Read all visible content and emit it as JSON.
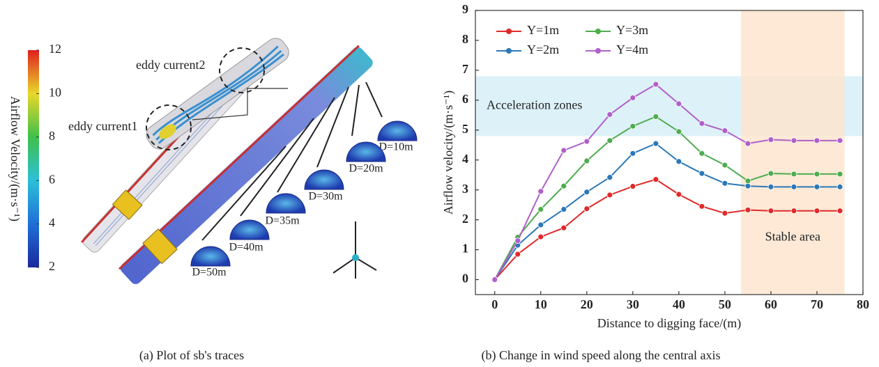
{
  "chart_data": {
    "type": "line",
    "caption": "(b) Change in wind speed along the central axis",
    "xlabel": "Distance to digging face/(m)",
    "ylabel": "Airflow velocity/(m·s⁻¹)",
    "x": [
      0,
      5,
      10,
      15,
      20,
      25,
      30,
      35,
      40,
      45,
      50,
      55,
      60,
      65,
      70,
      75
    ],
    "series": [
      {
        "name": "Y=1m",
        "color": "#e02a2a",
        "values": [
          0,
          0.85,
          1.43,
          1.73,
          2.37,
          2.83,
          3.12,
          3.35,
          2.85,
          2.45,
          2.22,
          2.33,
          2.3,
          2.3,
          2.3,
          2.3
        ]
      },
      {
        "name": "Y=2m",
        "color": "#2b78b8",
        "values": [
          0,
          1.15,
          1.83,
          2.35,
          2.93,
          3.42,
          4.22,
          4.55,
          3.95,
          3.55,
          3.22,
          3.13,
          3.1,
          3.1,
          3.1,
          3.1
        ]
      },
      {
        "name": "Y=3m",
        "color": "#4eac4e",
        "values": [
          0,
          1.42,
          2.35,
          3.13,
          3.97,
          4.65,
          5.13,
          5.45,
          4.95,
          4.22,
          3.83,
          3.3,
          3.55,
          3.53,
          3.53,
          3.53
        ]
      },
      {
        "name": "Y=4m",
        "color": "#b060c8",
        "values": [
          0,
          1.3,
          2.95,
          4.32,
          4.62,
          5.52,
          6.08,
          6.53,
          5.88,
          5.22,
          4.98,
          4.55,
          4.68,
          4.65,
          4.65,
          4.65
        ]
      }
    ],
    "xlim": [
      -4.2,
      80
    ],
    "ylim": [
      -0.5,
      9
    ],
    "xticks": [
      0,
      10,
      20,
      30,
      40,
      50,
      60,
      70,
      80
    ],
    "yticks": [
      0,
      1,
      2,
      3,
      4,
      5,
      6,
      7,
      8,
      9
    ],
    "bands": [
      {
        "label": "Acceleration zones",
        "ylim": [
          4.8,
          6.8
        ],
        "color": "#d7eef8"
      },
      {
        "label": "Stable area",
        "xlim": [
          53.5,
          76
        ],
        "color": "#fde5cf"
      }
    ],
    "legend": "upper left"
  },
  "figure_a": {
    "caption": "(a) Plot of sb's traces",
    "colorbar": {
      "label": "Airflow Velocity/(m·s⁻¹)",
      "range": [
        2,
        12
      ],
      "ticks": [
        2,
        4,
        6,
        8,
        10,
        12
      ]
    },
    "annotations": [
      "eddy current2",
      "eddy current1"
    ],
    "sections": [
      "D=10m",
      "D=20m",
      "D=30m",
      "D=35m",
      "D=40m",
      "D=50m"
    ]
  }
}
